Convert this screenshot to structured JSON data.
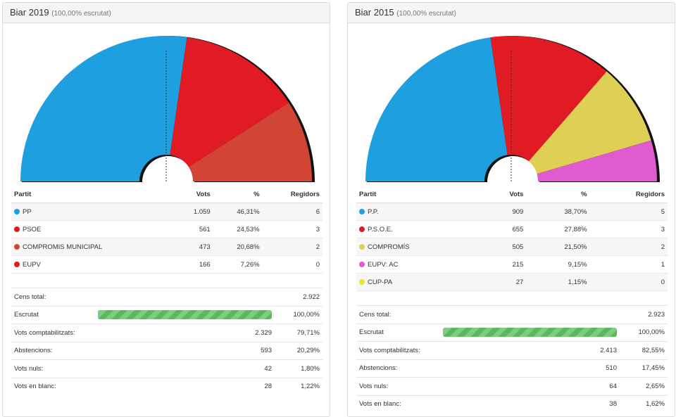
{
  "panels": [
    {
      "title": "Biar 2019",
      "subtitle": "(100,00% escrutat)",
      "columns": [
        "Partit",
        "Vots",
        "%",
        "Regidors"
      ],
      "parties": [
        {
          "name": "PP",
          "votes": "1.059",
          "pct": "46,31%",
          "seats": "6",
          "color": "#1e9fe0"
        },
        {
          "name": "PSOE",
          "votes": "561",
          "pct": "24,53%",
          "seats": "3",
          "color": "#e01b23"
        },
        {
          "name": "COMPROMIS MUNICIPAL",
          "votes": "473",
          "pct": "20,68%",
          "seats": "2",
          "color": "#d24535"
        },
        {
          "name": "EUPV",
          "votes": "166",
          "pct": "7,26%",
          "seats": "0",
          "color": "#e01b23"
        }
      ],
      "summary": {
        "cens_label": "Cens total:",
        "cens": "2.922",
        "escrutat_label": "Escrutat",
        "escrutat": "100,00%",
        "escrutat_progress": 100,
        "rows": [
          {
            "label": "Vots comptabilitzats:",
            "value": "2.329",
            "pct": "79,71%"
          },
          {
            "label": "Abstencions:",
            "value": "593",
            "pct": "20,29%"
          },
          {
            "label": "Vots nuls:",
            "value": "42",
            "pct": "1,80%"
          },
          {
            "label": "Vots en blanc:",
            "value": "28",
            "pct": "1,22%"
          }
        ]
      }
    },
    {
      "title": "Biar 2015",
      "subtitle": "(100,00% escrutat)",
      "columns": [
        "Partit",
        "Vots",
        "%",
        "Regidors"
      ],
      "parties": [
        {
          "name": "P.P.",
          "votes": "909",
          "pct": "38,70%",
          "seats": "5",
          "color": "#1e9fe0"
        },
        {
          "name": "P.S.O.E.",
          "votes": "655",
          "pct": "27,88%",
          "seats": "3",
          "color": "#e01b23"
        },
        {
          "name": "COMPROMÍS",
          "votes": "505",
          "pct": "21,50%",
          "seats": "2",
          "color": "#e0cf55"
        },
        {
          "name": "EUPV: AC",
          "votes": "215",
          "pct": "9,15%",
          "seats": "1",
          "color": "#e05ad0"
        },
        {
          "name": "CUP-PA",
          "votes": "27",
          "pct": "1,15%",
          "seats": "0",
          "color": "#f5e12a"
        }
      ],
      "summary": {
        "cens_label": "Cens total:",
        "cens": "2.923",
        "escrutat_label": "Escrutat",
        "escrutat": "100,00%",
        "escrutat_progress": 100,
        "rows": [
          {
            "label": "Vots comptabilitzats:",
            "value": "2.413",
            "pct": "82,55%"
          },
          {
            "label": "Abstencions:",
            "value": "510",
            "pct": "17,45%"
          },
          {
            "label": "Vots nuls:",
            "value": "64",
            "pct": "2,65%"
          },
          {
            "label": "Vots en blanc:",
            "value": "38",
            "pct": "1,62%"
          }
        ]
      }
    }
  ],
  "chart_data": [
    {
      "type": "pie",
      "shape": "hemicycle",
      "categories": [
        "PP",
        "PSOE",
        "COMPROMIS MUNICIPAL"
      ],
      "values": [
        6,
        3,
        2
      ]
    },
    {
      "type": "pie",
      "shape": "hemicycle",
      "categories": [
        "P.P.",
        "P.S.O.E.",
        "COMPROMÍS",
        "EUPV: AC"
      ],
      "values": [
        5,
        3,
        2,
        1
      ]
    }
  ]
}
